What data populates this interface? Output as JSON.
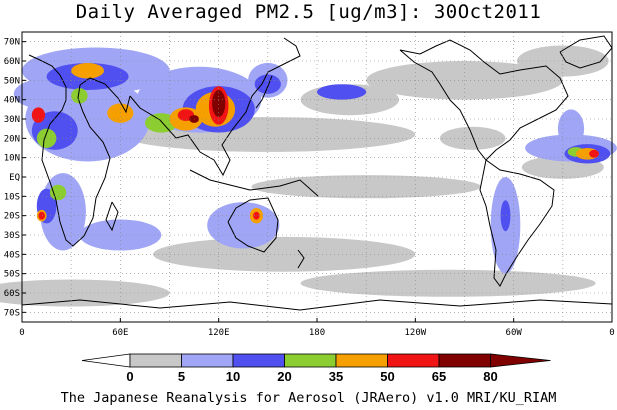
{
  "title": "Daily Averaged PM2.5 [ug/m3]: 30Oct2011",
  "footer": "The Japanese Reanalysis for Aerosol (JRAero) v1.0 MRI/KU_RIAM",
  "lat_labels": [
    "70N",
    "60N",
    "50N",
    "40N",
    "30N",
    "20N",
    "10N",
    "EQ",
    "10S",
    "20S",
    "30S",
    "40S",
    "50S",
    "60S",
    "70S"
  ],
  "lon_labels": [
    "0",
    "60E",
    "120E",
    "180",
    "120W",
    "60W",
    "0"
  ],
  "colorbar": {
    "ticks": [
      "0",
      "5",
      "10",
      "20",
      "35",
      "50",
      "65",
      "80"
    ],
    "colors": [
      "#ffffff",
      "#c8c8c8",
      "#a0a6f5",
      "#5050f0",
      "#8ccd32",
      "#f5a000",
      "#f01414",
      "#800000"
    ]
  },
  "regions": [
    {
      "lon": 150,
      "lat": 22,
      "rx": 90,
      "ry": 9,
      "level": 1
    },
    {
      "lon": 210,
      "lat": -5,
      "rx": 70,
      "ry": 6,
      "level": 1
    },
    {
      "lon": 160,
      "lat": -40,
      "rx": 80,
      "ry": 9,
      "level": 1
    },
    {
      "lon": 260,
      "lat": -55,
      "rx": 90,
      "ry": 7,
      "level": 1
    },
    {
      "lon": 30,
      "lat": -60,
      "rx": 60,
      "ry": 7,
      "level": 1
    },
    {
      "lon": 270,
      "lat": 50,
      "rx": 60,
      "ry": 10,
      "level": 1
    },
    {
      "lon": 200,
      "lat": 40,
      "rx": 30,
      "ry": 8,
      "level": 1
    },
    {
      "lon": 330,
      "lat": 60,
      "rx": 28,
      "ry": 8,
      "level": 1
    },
    {
      "lon": 330,
      "lat": 5,
      "rx": 25,
      "ry": 6,
      "level": 1
    },
    {
      "lon": 275,
      "lat": 20,
      "rx": 20,
      "ry": 6,
      "level": 1
    },
    {
      "lon": 45,
      "lat": 55,
      "rx": 45,
      "ry": 12,
      "level": 2
    },
    {
      "lon": 40,
      "lat": 30,
      "rx": 38,
      "ry": 22,
      "level": 2
    },
    {
      "lon": 108,
      "lat": 40,
      "rx": 38,
      "ry": 17,
      "level": 2
    },
    {
      "lon": 150,
      "lat": 50,
      "rx": 12,
      "ry": 9,
      "level": 2
    },
    {
      "lon": 25,
      "lat": -18,
      "rx": 14,
      "ry": 20,
      "level": 2
    },
    {
      "lon": 60,
      "lat": -30,
      "rx": 25,
      "ry": 8,
      "level": 2
    },
    {
      "lon": 135,
      "lat": -25,
      "rx": 22,
      "ry": 12,
      "level": 2
    },
    {
      "lon": 295,
      "lat": -25,
      "rx": 9,
      "ry": 25,
      "level": 2
    },
    {
      "lon": 335,
      "lat": 15,
      "rx": 28,
      "ry": 7,
      "level": 2
    },
    {
      "lon": 15,
      "lat": 43,
      "rx": 20,
      "ry": 8,
      "level": 2
    },
    {
      "lon": 335,
      "lat": 25,
      "rx": 8,
      "ry": 10,
      "level": 2
    },
    {
      "lon": 195,
      "lat": 44,
      "rx": 15,
      "ry": 4,
      "level": 3
    },
    {
      "lon": 40,
      "lat": 52,
      "rx": 25,
      "ry": 7,
      "level": 3
    },
    {
      "lon": 20,
      "lat": 24,
      "rx": 14,
      "ry": 10,
      "level": 3
    },
    {
      "lon": 15,
      "lat": -15,
      "rx": 6,
      "ry": 9,
      "level": 3
    },
    {
      "lon": 120,
      "lat": 35,
      "rx": 22,
      "ry": 12,
      "level": 3
    },
    {
      "lon": 345,
      "lat": 12,
      "rx": 14,
      "ry": 5,
      "level": 3
    },
    {
      "lon": 295,
      "lat": -20,
      "rx": 3,
      "ry": 8,
      "level": 3
    },
    {
      "lon": 150,
      "lat": 48,
      "rx": 8,
      "ry": 5,
      "level": 3
    },
    {
      "lon": 35,
      "lat": 42,
      "rx": 5,
      "ry": 4,
      "level": 4
    },
    {
      "lon": 15,
      "lat": 20,
      "rx": 6,
      "ry": 5,
      "level": 4
    },
    {
      "lon": 85,
      "lat": 28,
      "rx": 10,
      "ry": 5,
      "level": 4
    },
    {
      "lon": 338,
      "lat": 13,
      "rx": 5,
      "ry": 2.5,
      "level": 4
    },
    {
      "lon": 22,
      "lat": -8,
      "rx": 5,
      "ry": 4,
      "level": 4
    },
    {
      "lon": 40,
      "lat": 55,
      "rx": 10,
      "ry": 4,
      "level": 5
    },
    {
      "lon": 60,
      "lat": 33,
      "rx": 8,
      "ry": 5,
      "level": 5
    },
    {
      "lon": 100,
      "lat": 30,
      "rx": 10,
      "ry": 6,
      "level": 5
    },
    {
      "lon": 118,
      "lat": 35,
      "rx": 12,
      "ry": 9,
      "level": 5
    },
    {
      "lon": 143,
      "lat": -20,
      "rx": 4,
      "ry": 4,
      "level": 5
    },
    {
      "lon": 345,
      "lat": 12,
      "rx": 7,
      "ry": 3,
      "level": 5
    },
    {
      "lon": 12,
      "lat": -20,
      "rx": 3,
      "ry": 3,
      "level": 5
    },
    {
      "lon": 10,
      "lat": 32,
      "rx": 4,
      "ry": 4,
      "level": 6
    },
    {
      "lon": 100,
      "lat": 32,
      "rx": 5,
      "ry": 3,
      "level": 6
    },
    {
      "lon": 120,
      "lat": 37,
      "rx": 6,
      "ry": 10,
      "level": 6
    },
    {
      "lon": 143,
      "lat": -20,
      "rx": 2,
      "ry": 2,
      "level": 6
    },
    {
      "lon": 12,
      "lat": -20,
      "rx": 2,
      "ry": 2,
      "level": 6
    },
    {
      "lon": 349,
      "lat": 12,
      "rx": 3,
      "ry": 2,
      "level": 6
    },
    {
      "lon": 120,
      "lat": 38,
      "rx": 4,
      "ry": 7,
      "level": 7
    },
    {
      "lon": 105,
      "lat": 30,
      "rx": 3,
      "ry": 2,
      "level": 7
    }
  ]
}
